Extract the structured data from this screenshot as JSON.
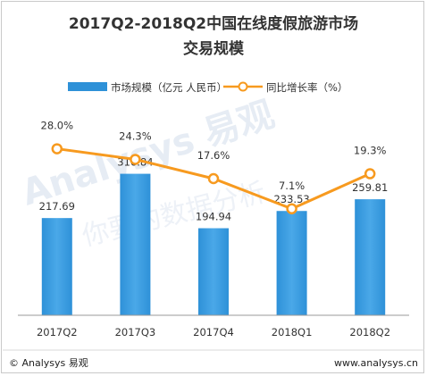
{
  "title_line1": "2017Q2-2018Q2中国在线度假旅游市场",
  "title_line2": "交易规模",
  "colors": {
    "bar": "#2e91d8",
    "bar_light": "#4aa8e8",
    "line": "#f79a1f",
    "marker_fill": "#ffffff",
    "axis": "#999999"
  },
  "chart_data": {
    "type": "bar",
    "categories": [
      "2017Q2",
      "2017Q3",
      "2017Q4",
      "2018Q1",
      "2018Q2"
    ],
    "series": [
      {
        "name": "市场规模（亿元 人民币）",
        "type": "bar",
        "axis": "left",
        "values": [
          217.69,
          316.84,
          194.94,
          233.53,
          259.81
        ],
        "labels": [
          "217.69",
          "316.84",
          "194.94",
          "233.53",
          "259.81"
        ]
      },
      {
        "name": "同比增长率（%）",
        "type": "line",
        "axis": "right",
        "values": [
          28.0,
          24.3,
          17.6,
          7.1,
          19.3
        ],
        "labels": [
          "28.0%",
          "24.3%",
          "17.6%",
          "7.1%",
          "19.3%"
        ]
      }
    ],
    "ylim": [
      0,
      450
    ],
    "y2lim": [
      -30,
      40
    ],
    "grid": false,
    "legend_position": "top"
  },
  "watermark": {
    "brand": "Analysys 易观",
    "slogan": "你要的数据分析"
  },
  "footer": {
    "left": "© Analysys 易观",
    "right": "www.analysys.cn"
  }
}
